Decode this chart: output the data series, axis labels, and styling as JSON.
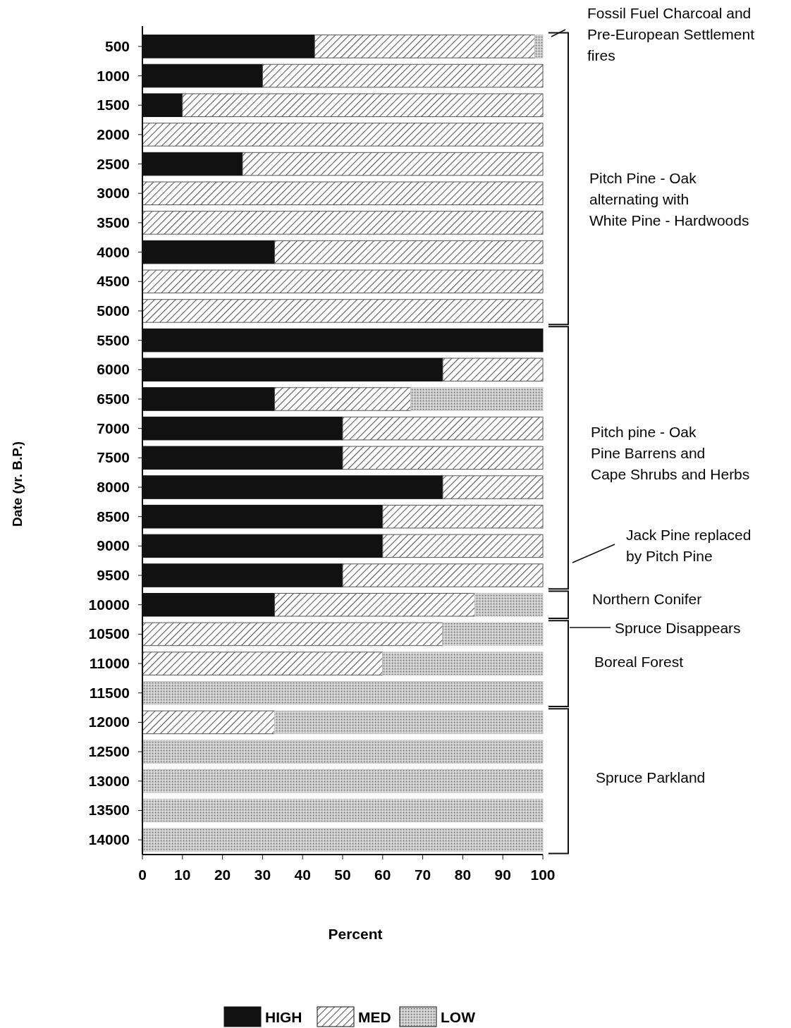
{
  "chart_data": {
    "type": "bar",
    "orientation": "horizontal",
    "stacked": true,
    "categories": [
      "500",
      "1000",
      "1500",
      "2000",
      "2500",
      "3000",
      "3500",
      "4000",
      "4500",
      "5000",
      "5500",
      "6000",
      "6500",
      "7000",
      "7500",
      "8000",
      "8500",
      "9000",
      "9500",
      "10000",
      "10500",
      "11000",
      "11500",
      "12000",
      "12500",
      "13000",
      "13500",
      "14000"
    ],
    "series": [
      {
        "name": "HIGH",
        "color": "#111111",
        "values": [
          43,
          30,
          10,
          0,
          25,
          0,
          0,
          33,
          0,
          0,
          100,
          75,
          33,
          50,
          50,
          75,
          60,
          60,
          50,
          33,
          0,
          0,
          0,
          0,
          0,
          0,
          0,
          0
        ]
      },
      {
        "name": "MED",
        "color": "#555555",
        "values": [
          55,
          70,
          90,
          100,
          75,
          100,
          100,
          67,
          100,
          100,
          0,
          25,
          34,
          50,
          50,
          25,
          40,
          40,
          50,
          50,
          75,
          60,
          0,
          33,
          0,
          0,
          0,
          0
        ]
      },
      {
        "name": "LOW",
        "color": "#c8c8c8",
        "values": [
          2,
          0,
          0,
          0,
          0,
          0,
          0,
          0,
          0,
          0,
          0,
          0,
          33,
          0,
          0,
          0,
          0,
          0,
          0,
          17,
          25,
          40,
          100,
          67,
          100,
          100,
          100,
          100
        ]
      }
    ],
    "xlim": [
      0,
      100
    ],
    "xticks": [
      0,
      10,
      20,
      30,
      40,
      50,
      60,
      70,
      80,
      90,
      100
    ],
    "xlabel": "Percent",
    "ylabel": "Date (yr. B.P.)",
    "grid": false,
    "legend": "bottom",
    "annotations": [
      "Fossil Fuel Charcoal and\nPre-European Settlement\nfires",
      "Pitch Pine - Oak\nalternating with\nWhite Pine - Hardwoods",
      "Pitch pine - Oak\nPine Barrens and\nCape Shrubs and Herbs",
      "Jack Pine replaced\nby Pitch Pine",
      "Northern Conifer",
      "Spruce Disappears",
      "Boreal Forest",
      "Spruce Parkland"
    ]
  }
}
